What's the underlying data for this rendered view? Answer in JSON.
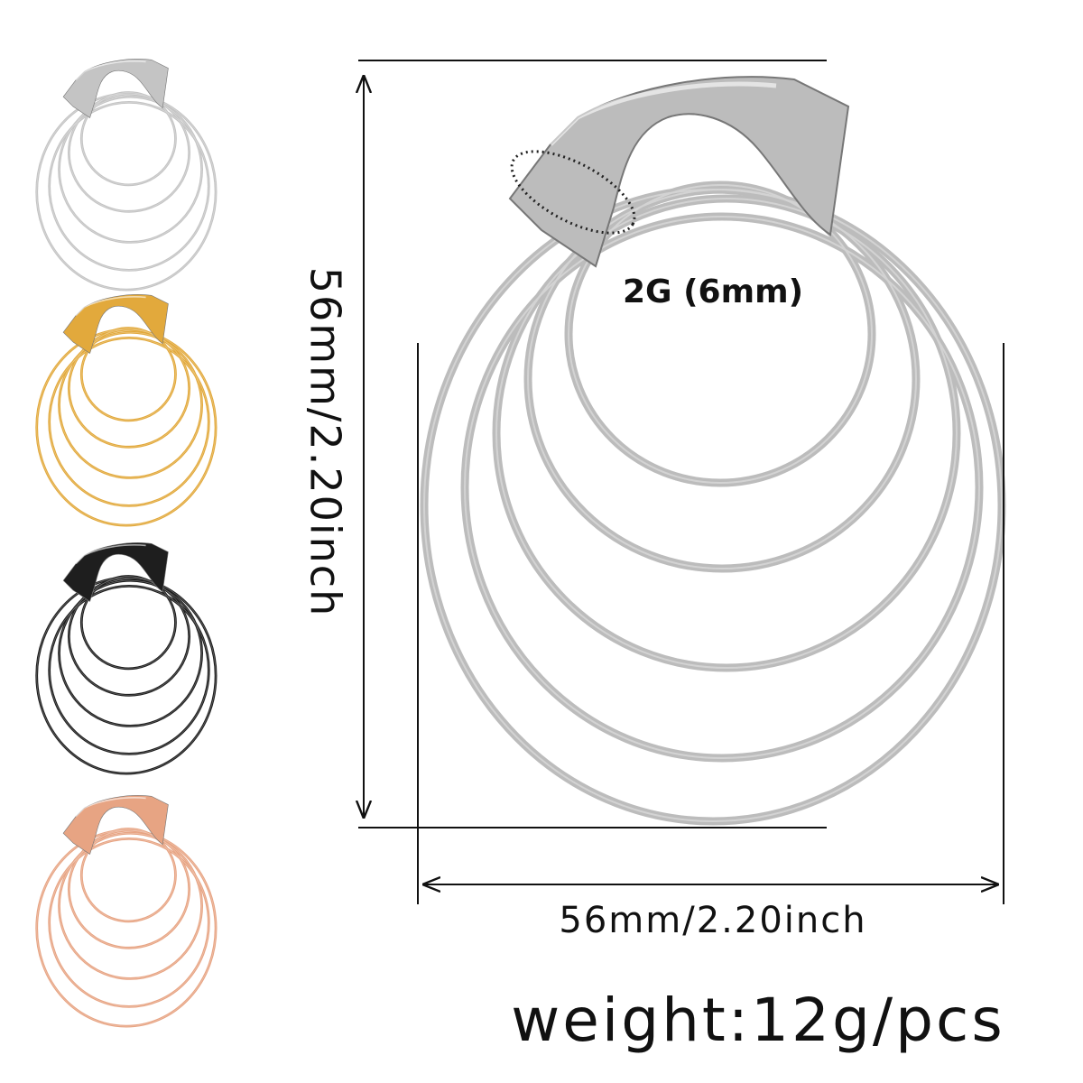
{
  "dimensions": {
    "height": "56mm/2.20inch",
    "width": "56mm/2.20inch"
  },
  "gauge": "2G (6mm)",
  "weight": "weight:12g/pcs"
}
